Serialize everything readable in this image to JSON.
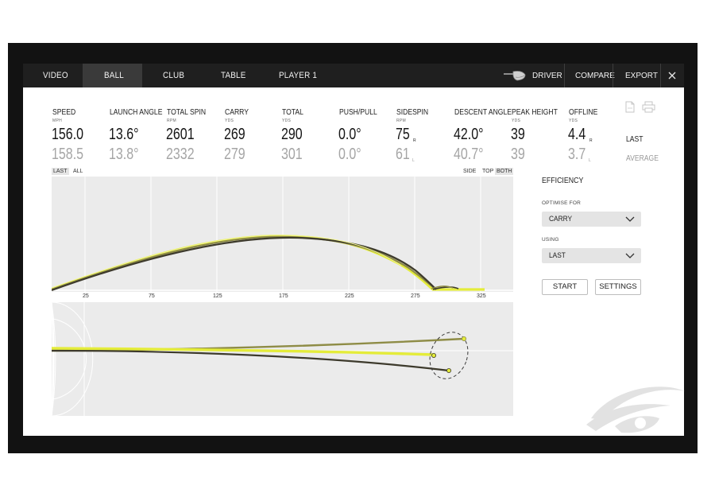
{
  "nav": {
    "tabs": [
      {
        "label": "VIDEO"
      },
      {
        "label": "BALL"
      },
      {
        "label": "CLUB"
      },
      {
        "label": "TABLE"
      },
      {
        "label": "PLAYER 1"
      }
    ],
    "active_tab": "BALL",
    "club_label": "DRIVER",
    "compare_label": "COMPARE",
    "export_label": "EXPORT",
    "close_icon": "close-icon"
  },
  "metrics": [
    {
      "label": "SPEED",
      "unit": "MPH",
      "last": "156.0",
      "average": "158.5"
    },
    {
      "label": "LAUNCH ANGLE",
      "unit": "",
      "last": "13.6°",
      "average": "13.8°"
    },
    {
      "label": "TOTAL SPIN",
      "unit": "RPM",
      "last": "2601",
      "average": "2332"
    },
    {
      "label": "CARRY",
      "unit": "YDS",
      "last": "269",
      "average": "279"
    },
    {
      "label": "TOTAL",
      "unit": "YDS",
      "last": "290",
      "average": "301"
    },
    {
      "label": "PUSH/PULL",
      "unit": "",
      "last": "0.0°",
      "average": "0.0°"
    },
    {
      "label": "SIDESPIN",
      "unit": "RPM",
      "last": "75",
      "last_dir": "R",
      "average": "61",
      "average_dir": "L"
    },
    {
      "label": "DESCENT ANGLE",
      "unit": "",
      "last": "42.0°",
      "average": "40.7°"
    },
    {
      "label": "PEAK HEIGHT",
      "unit": "YDS",
      "last": "39",
      "average": "39"
    },
    {
      "label": "OFFLINE",
      "unit": "YDS",
      "last": "4.4",
      "last_dir": "R",
      "average": "3.7",
      "average_dir": "L"
    }
  ],
  "row_labels": {
    "last": "LAST",
    "average": "AVERAGE"
  },
  "view_filters": {
    "last": "LAST",
    "all": "ALL",
    "side": "SIDE",
    "top": "TOP",
    "both": "BOTH"
  },
  "side_view": {
    "x_ticks": [
      "25",
      "75",
      "125",
      "175",
      "225",
      "275",
      "325"
    ]
  },
  "efficiency": {
    "title": "EFFICIENCY",
    "optimise_label": "OPTIMISE FOR",
    "optimise_value": "CARRY",
    "using_label": "USING",
    "using_value": "LAST",
    "start_label": "START",
    "settings_label": "SETTINGS"
  },
  "colors": {
    "highlight": "#e4ec3a",
    "dark_shot": "#3d3a2c",
    "olive_shot": "#8e8c46",
    "topbar": "#1f1f1f"
  }
}
